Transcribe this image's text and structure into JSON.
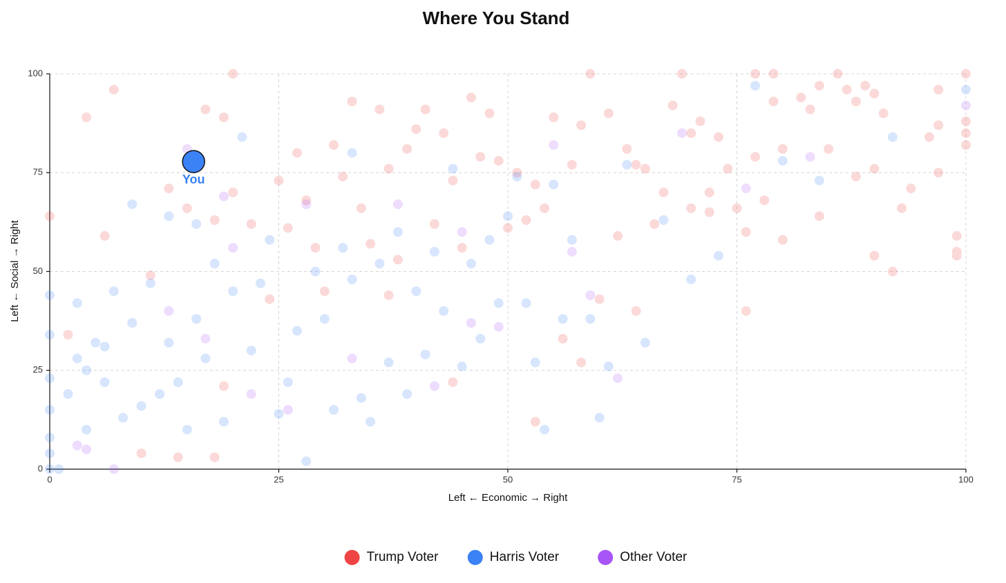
{
  "chart_data": {
    "type": "scatter",
    "title": "Where You Stand",
    "x_label": "Left ← Economic → Right",
    "y_label": "Left ← Social → Right",
    "xlim": [
      0,
      100
    ],
    "ylim": [
      0,
      100
    ],
    "xticks": [
      0,
      25,
      50,
      75,
      100
    ],
    "yticks": [
      0,
      25,
      50,
      75,
      100
    ],
    "grid": true,
    "point_opacity": 0.2,
    "legend": "bottom",
    "series": [
      {
        "name": "Trump Voter",
        "color": "#ef4444",
        "x": [
          100,
          100,
          100,
          100,
          99,
          99,
          99,
          97,
          97,
          97,
          96,
          94,
          93,
          92,
          91,
          90,
          90,
          90,
          89,
          88,
          88,
          87,
          86,
          85,
          84,
          84,
          83,
          82,
          80,
          80,
          79,
          79,
          78,
          77,
          77,
          76,
          76,
          75,
          74,
          73,
          72,
          72,
          71,
          70,
          69,
          68,
          67,
          66,
          65,
          64,
          63,
          62,
          61,
          60,
          59,
          58,
          57,
          56,
          55,
          54,
          53,
          52,
          51,
          50,
          49,
          48,
          47,
          46,
          45,
          44,
          43,
          42,
          41,
          40,
          39,
          38,
          37,
          36,
          35,
          34,
          33,
          32,
          31,
          30,
          29,
          28,
          27,
          26,
          25,
          24,
          22,
          20,
          19,
          18,
          17,
          15,
          13,
          11,
          7,
          6,
          4,
          2,
          0,
          20,
          19,
          10,
          14,
          18,
          53,
          58,
          64,
          70,
          44,
          37
        ],
        "values": [
          100,
          85,
          88,
          82,
          59,
          55,
          54,
          96,
          87,
          75,
          84,
          71,
          66,
          50,
          90,
          95,
          76,
          54,
          97,
          93,
          74,
          96,
          100,
          81,
          97,
          64,
          91,
          94,
          81,
          58,
          100,
          93,
          68,
          100,
          79,
          60,
          40,
          66,
          76,
          84,
          70,
          65,
          88,
          85,
          100,
          92,
          70,
          62,
          76,
          77,
          81,
          59,
          90,
          43,
          100,
          87,
          77,
          33,
          89,
          66,
          72,
          63,
          75,
          61,
          78,
          90,
          79,
          94,
          56,
          73,
          85,
          62,
          91,
          86,
          81,
          53,
          76,
          91,
          57,
          66,
          93,
          74,
          82,
          45,
          56,
          68,
          80,
          61,
          73,
          43,
          62,
          70,
          89,
          63,
          91,
          66,
          71,
          49,
          96,
          59,
          89,
          34,
          64,
          100,
          21,
          4,
          3,
          3,
          12,
          27,
          40,
          66,
          22,
          44
        ]
      },
      {
        "name": "Harris Voter",
        "color": "#3b82f6",
        "x": [
          0,
          0,
          0,
          0,
          0,
          0,
          0,
          1,
          2,
          3,
          4,
          4,
          5,
          6,
          7,
          8,
          9,
          10,
          11,
          12,
          13,
          13,
          14,
          15,
          16,
          17,
          18,
          19,
          20,
          21,
          22,
          23,
          24,
          25,
          26,
          27,
          28,
          29,
          30,
          31,
          32,
          33,
          34,
          35,
          36,
          37,
          38,
          39,
          40,
          41,
          42,
          43,
          44,
          45,
          46,
          47,
          48,
          49,
          50,
          51,
          52,
          53,
          54,
          55,
          56,
          57,
          59,
          60,
          61,
          63,
          65,
          67,
          70,
          73,
          77,
          80,
          84,
          92,
          100,
          33,
          16,
          9,
          6,
          3
        ],
        "values": [
          0,
          4,
          8,
          15,
          23,
          34,
          44,
          0,
          19,
          28,
          10,
          25,
          32,
          22,
          45,
          13,
          37,
          16,
          47,
          19,
          64,
          32,
          22,
          10,
          62,
          28,
          52,
          12,
          45,
          84,
          30,
          47,
          58,
          14,
          22,
          35,
          2,
          50,
          38,
          15,
          56,
          48,
          18,
          12,
          52,
          27,
          60,
          19,
          45,
          29,
          55,
          40,
          76,
          26,
          52,
          33,
          58,
          42,
          64,
          74,
          42,
          27,
          10,
          72,
          38,
          58,
          38,
          13,
          26,
          77,
          32,
          63,
          48,
          54,
          97,
          78,
          73,
          84,
          96,
          80,
          38,
          67,
          31,
          42
        ]
      },
      {
        "name": "Other Voter",
        "color": "#a855f7",
        "x": [
          15,
          19,
          20,
          13,
          22,
          26,
          28,
          33,
          38,
          42,
          45,
          46,
          49,
          55,
          57,
          59,
          62,
          69,
          76,
          83,
          100,
          7,
          3,
          4,
          17
        ],
        "values": [
          81,
          69,
          56,
          40,
          19,
          15,
          67,
          28,
          67,
          21,
          60,
          37,
          36,
          82,
          55,
          44,
          23,
          85,
          71,
          79,
          92,
          0,
          6,
          5,
          33
        ]
      }
    ],
    "you": {
      "label": "You",
      "color": "#3b82f6",
      "x": 15.7,
      "y": 77.8
    }
  }
}
